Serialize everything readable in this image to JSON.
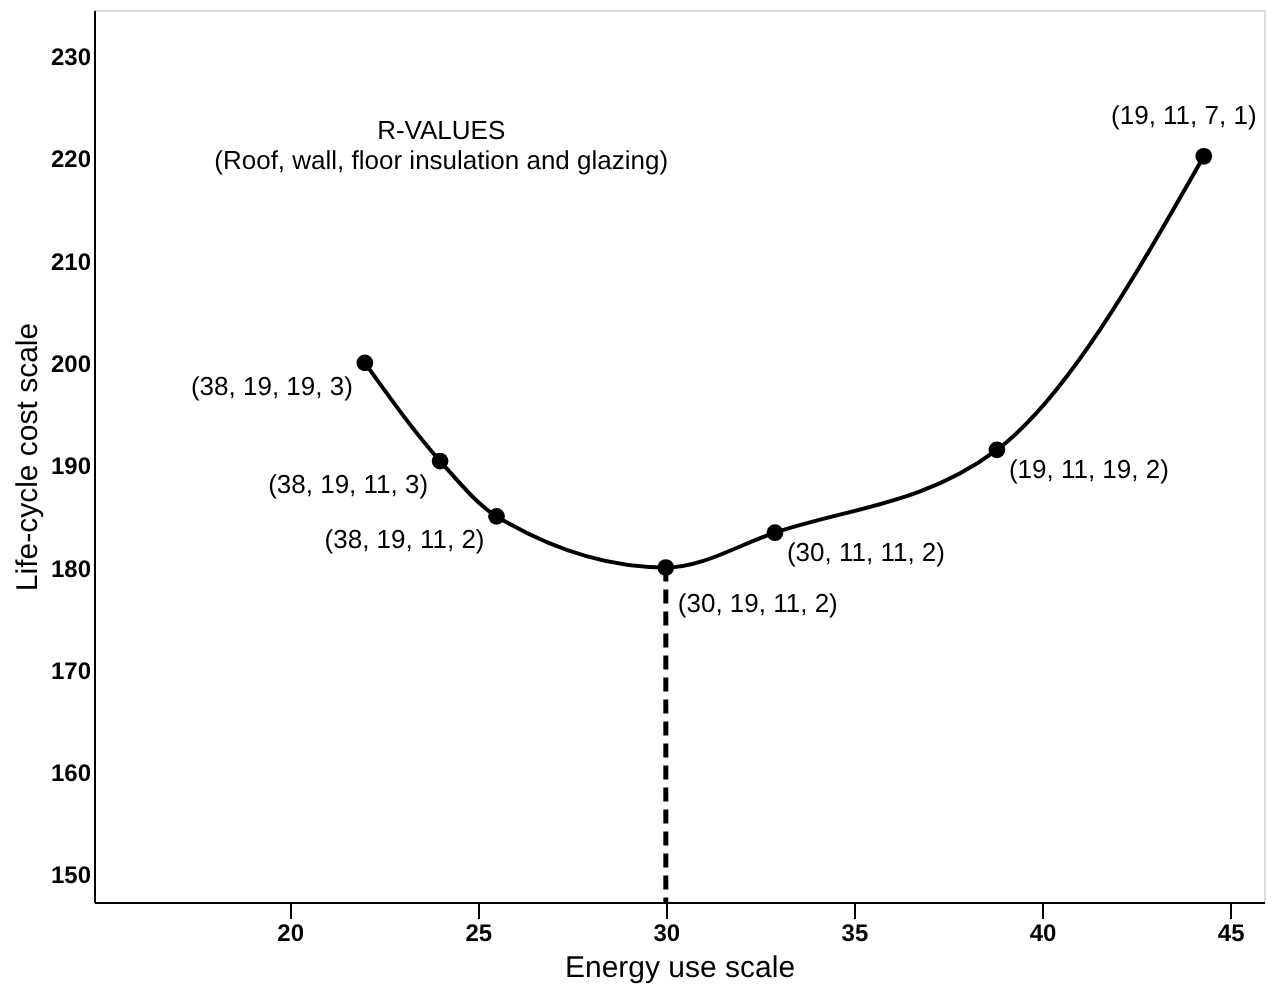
{
  "chart_data": {
    "type": "line",
    "xlabel": "Energy use scale",
    "ylabel": "Life-cycle cost scale",
    "xlim": [
      14.8,
      45.9
    ],
    "ylim": [
      147.3,
      234.5
    ],
    "xticks": [
      20,
      25,
      30,
      35,
      40,
      45
    ],
    "yticks": [
      150,
      160,
      170,
      180,
      190,
      200,
      210,
      220,
      230
    ],
    "grid": false,
    "series": [
      {
        "color": "#000000",
        "marker": "circle",
        "line_style": "solid",
        "x": [
          22,
          24,
          25.5,
          30,
          32.9,
          38.8,
          44.3
        ],
        "values": [
          200,
          190.4,
          185,
          180,
          183.4,
          191.5,
          220.2
        ]
      },
      {
        "color": "#000000",
        "marker": "none",
        "line_style": "dashed",
        "x": [
          30,
          30
        ],
        "values": [
          180,
          147.3
        ]
      }
    ],
    "annotations": [
      "R-VALUES\n(Roof, wall, floor insulation and glazing)",
      {
        "text": "(38, 19, 19, 3)",
        "x": 22,
        "y": 200
      },
      {
        "text": "(38, 19, 11, 3)",
        "x": 24,
        "y": 190.4
      },
      {
        "text": "(38, 19, 11, 2)",
        "x": 25.5,
        "y": 185
      },
      {
        "text": "(30, 19, 11, 2)",
        "x": 30,
        "y": 180
      },
      {
        "text": "(30, 11, 11, 2)",
        "x": 32.9,
        "y": 183.4
      },
      {
        "text": "(19, 11, 19, 2)",
        "x": 38.8,
        "y": 191.5
      },
      {
        "text": "(19, 11, 7, 1)",
        "x": 44.3,
        "y": 220.2
      }
    ]
  }
}
